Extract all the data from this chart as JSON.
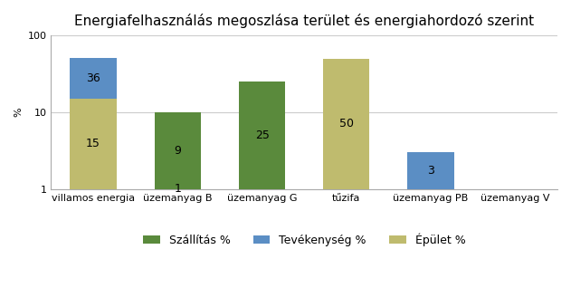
{
  "title": "Energiafelhasználás megoszlása terület és energiahordozó szerint",
  "categories": [
    "villamos energia",
    "üzemanyag B",
    "üzemanyag G",
    "tűzifa",
    "üzemanyag PB",
    "üzemanyag V"
  ],
  "series_order": [
    "Épület %",
    "Szállítás %",
    "Tevékenység %"
  ],
  "legend_order": [
    "Szállítás %",
    "Tevékenység %",
    "Épület %"
  ],
  "series": {
    "Szállítás %": {
      "color": "#5a8a3c",
      "values": [
        0,
        9,
        25,
        0,
        0,
        0
      ]
    },
    "Tevékenység %": {
      "color": "#5b8ec4",
      "values": [
        36,
        0,
        0,
        0,
        3,
        0
      ]
    },
    "Épület %": {
      "color": "#bfbb6e",
      "values": [
        15,
        1,
        0,
        50,
        0,
        0
      ]
    }
  },
  "ylabel": "%",
  "ylim_min": 1,
  "ylim_max": 100,
  "yticks": [
    1,
    10,
    100
  ],
  "background_color": "#ffffff",
  "bar_width": 0.55,
  "title_fontsize": 11,
  "label_fontsize": 8,
  "axis_fontsize": 8,
  "legend_fontsize": 9,
  "bar_label_fontsize": 9,
  "grid_color": "#cccccc"
}
